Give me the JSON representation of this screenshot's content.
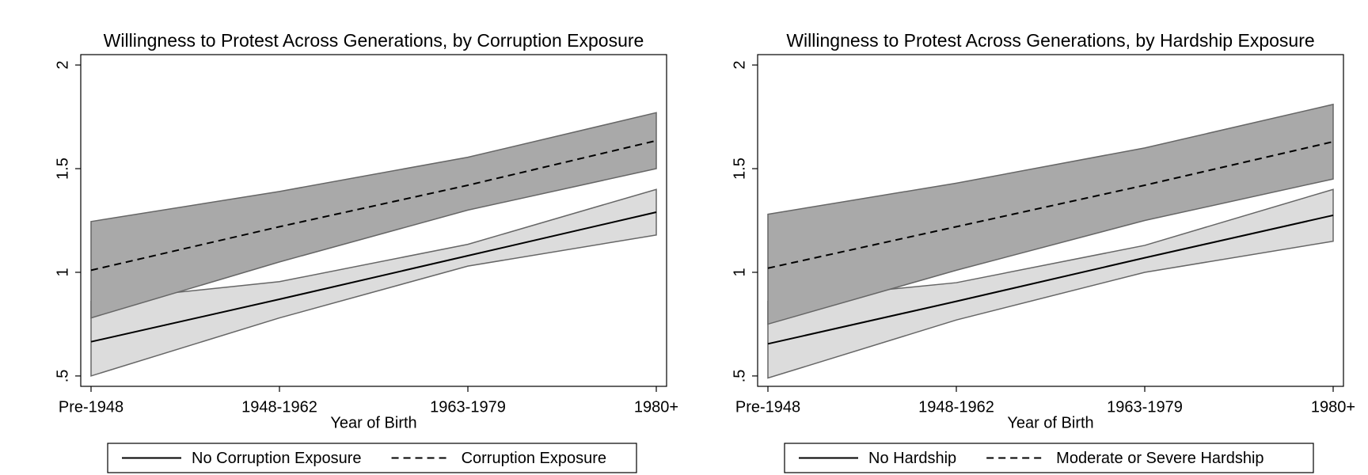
{
  "chart_data": [
    {
      "type": "line",
      "title": "Willingness to Protest Across Generations, by Corruption Exposure",
      "x_label": "Year of Birth",
      "categories": [
        "Pre-1948",
        "1948-1962",
        "1963-1979",
        "1980+"
      ],
      "ylim": [
        0.45,
        2.05
      ],
      "yticks": [
        {
          "value": 0.5,
          "label": ".5"
        },
        1,
        1.5,
        2
      ],
      "series": [
        {
          "name": "No Corruption Exposure",
          "color": "#000000",
          "band_color": "#dcdcdc",
          "dash": false,
          "values": [
            0.665,
            0.87,
            1.08,
            1.29
          ],
          "ci_lower": [
            0.5,
            0.78,
            1.03,
            1.18
          ],
          "ci_upper": [
            0.86,
            0.955,
            1.135,
            1.4
          ]
        },
        {
          "name": "Corruption Exposure",
          "color": "#000000",
          "band_color": "#a9a9a9",
          "dash": true,
          "values": [
            1.01,
            1.22,
            1.42,
            1.635
          ],
          "ci_lower": [
            0.78,
            1.05,
            1.3,
            1.5
          ],
          "ci_upper": [
            1.245,
            1.39,
            1.555,
            1.77
          ]
        }
      ]
    },
    {
      "type": "line",
      "title": "Willingness to Protest Across Generations, by Hardship Exposure",
      "x_label": "Year of Birth",
      "categories": [
        "Pre-1948",
        "1948-1962",
        "1963-1979",
        "1980+"
      ],
      "ylim": [
        0.45,
        2.05
      ],
      "yticks": [
        {
          "value": 0.5,
          "label": ".5"
        },
        1,
        1.5,
        2
      ],
      "series": [
        {
          "name": "No Hardship",
          "color": "#000000",
          "band_color": "#dcdcdc",
          "dash": false,
          "values": [
            0.655,
            0.86,
            1.07,
            1.275
          ],
          "ci_lower": [
            0.49,
            0.77,
            1.0,
            1.15
          ],
          "ci_upper": [
            0.86,
            0.95,
            1.13,
            1.4
          ]
        },
        {
          "name": "Moderate or Severe Hardship",
          "color": "#000000",
          "band_color": "#a9a9a9",
          "dash": true,
          "values": [
            1.02,
            1.22,
            1.42,
            1.63
          ],
          "ci_lower": [
            0.75,
            1.01,
            1.25,
            1.45
          ],
          "ci_upper": [
            1.28,
            1.43,
            1.6,
            1.81
          ]
        }
      ]
    }
  ]
}
